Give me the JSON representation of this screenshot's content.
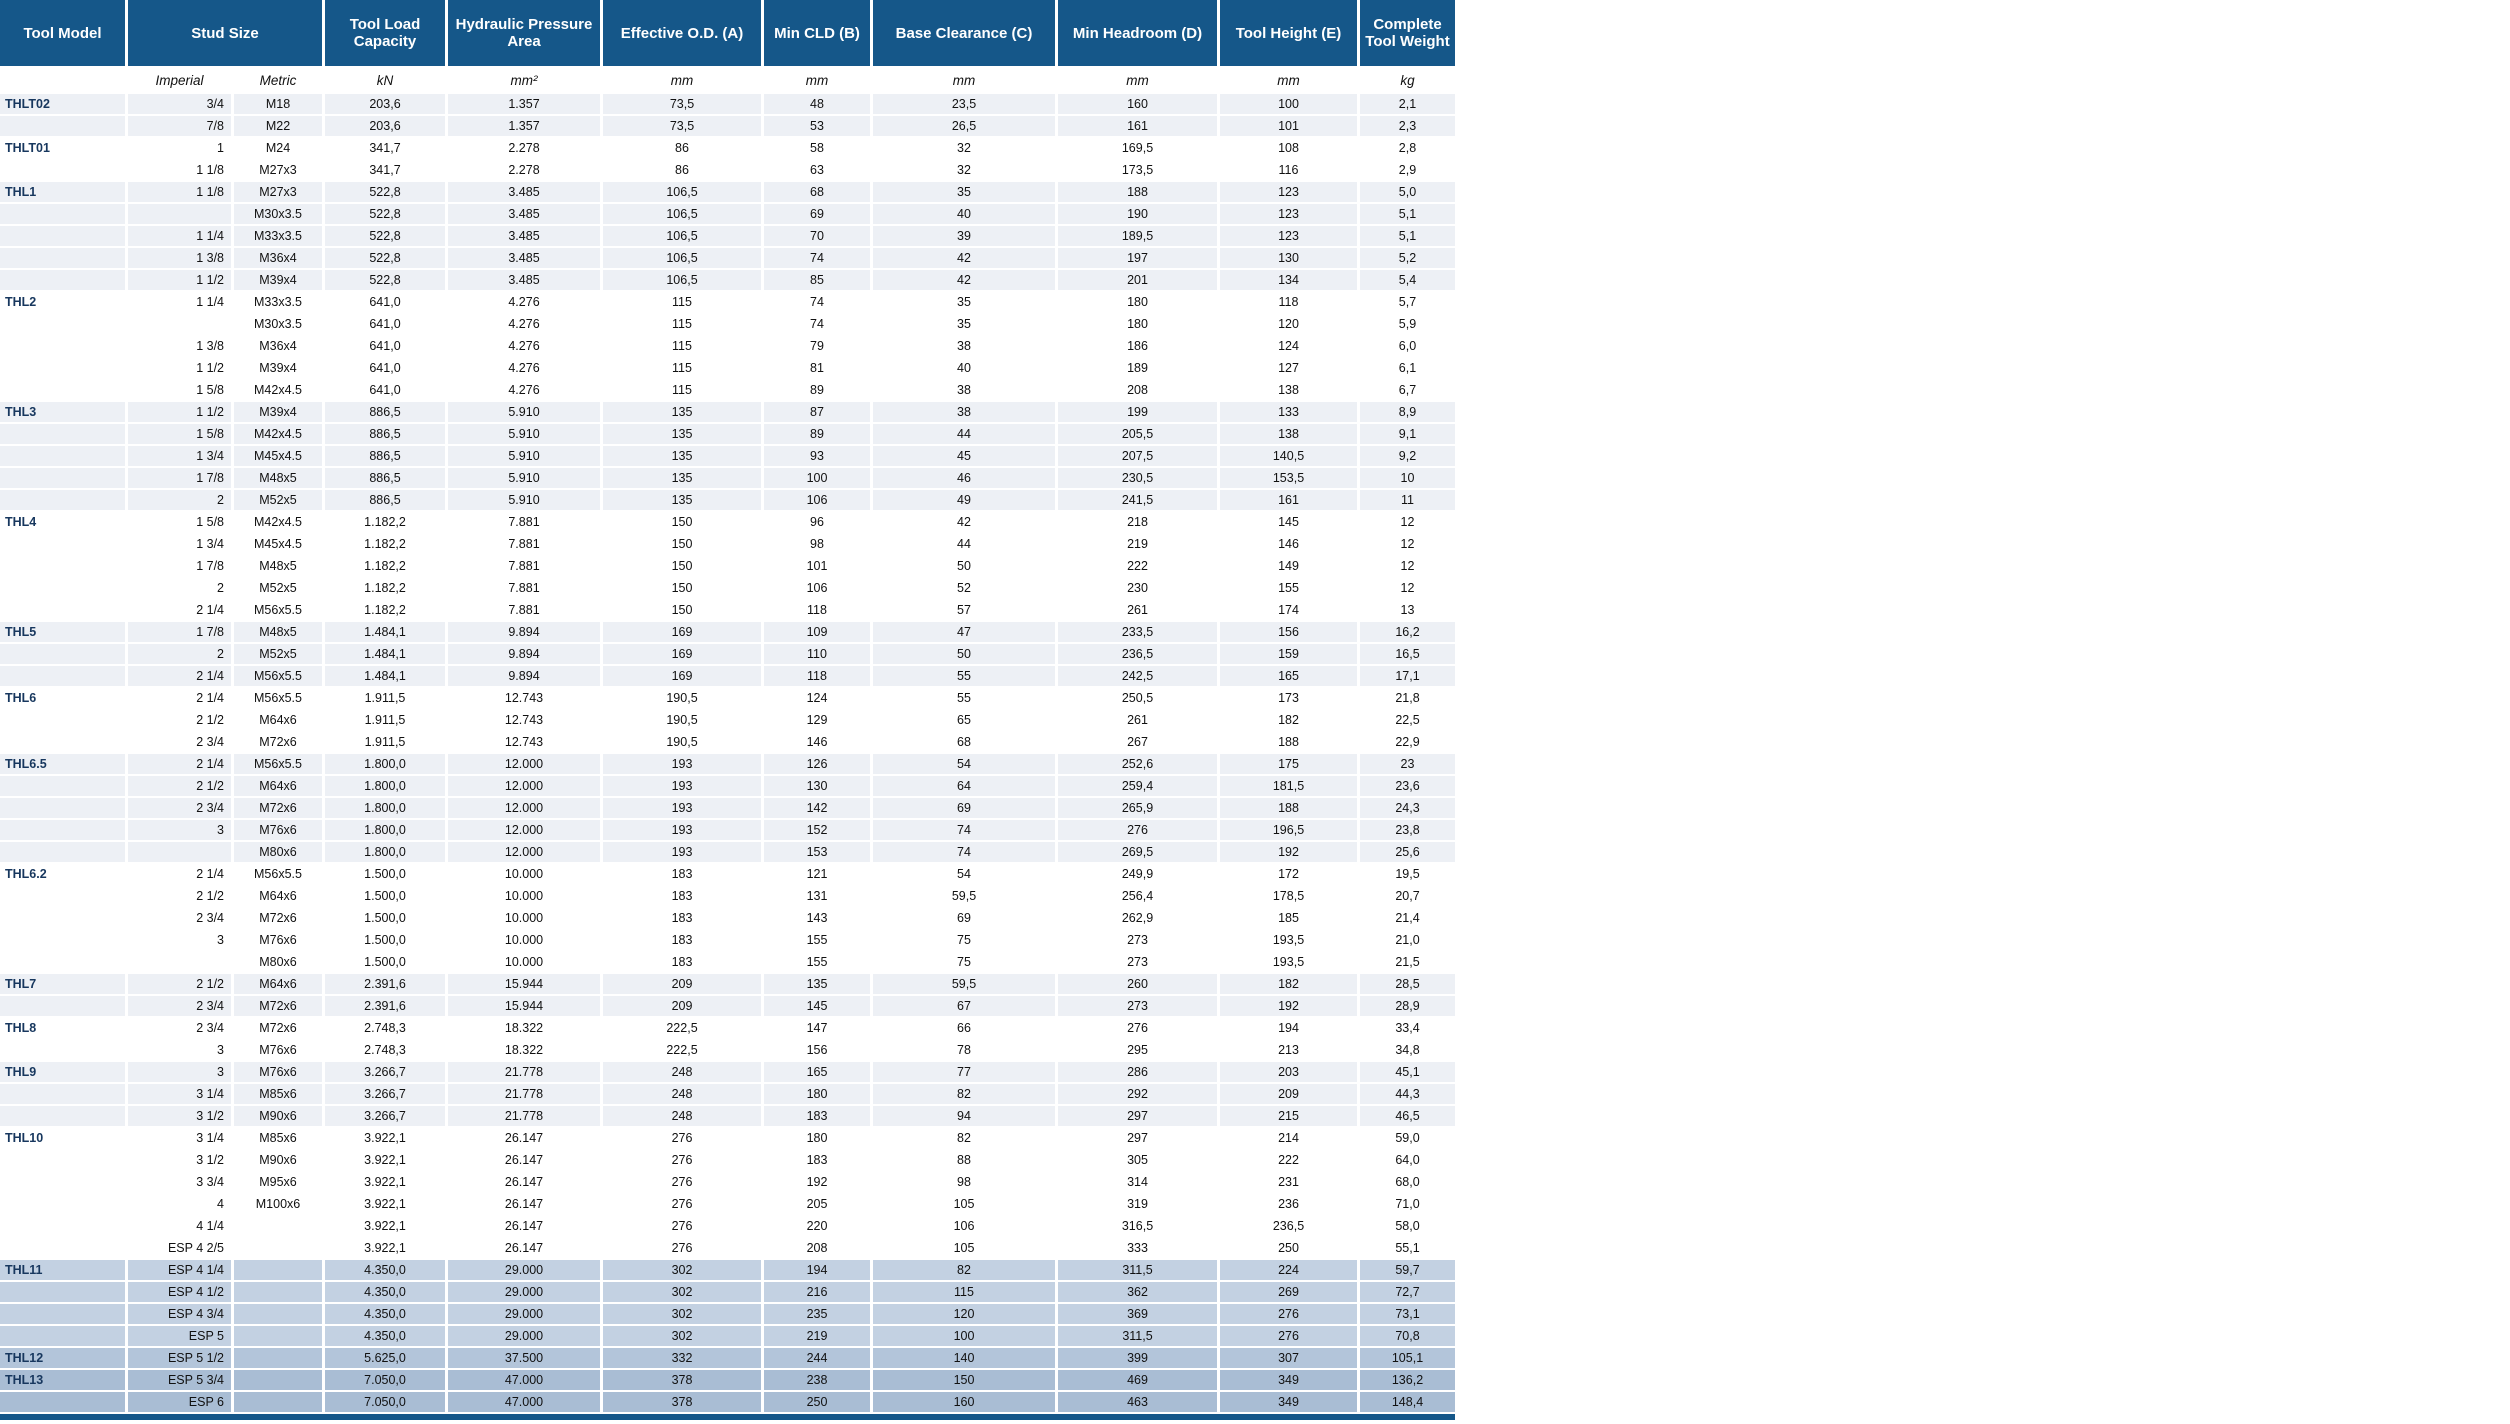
{
  "table": {
    "colors": {
      "header_bg": "#155789",
      "header_text": "#ffffff",
      "band_grey": "#edf0f5",
      "band_white": "#ffffff",
      "band_blue_light": "#c3d1e2",
      "band_blue_medium": "#b3c5da",
      "band_blue_dark": "#a9bdd4",
      "model_text": "#17375e"
    },
    "header_boxes": [
      {
        "label": "Tool Model"
      },
      {
        "label": "Stud Size"
      },
      {
        "label": "Tool Load Capacity"
      },
      {
        "label": "Hydraulic Pressure Area"
      },
      {
        "label": "Effective O.D. (A)"
      },
      {
        "label": "Min CLD (B)"
      },
      {
        "label": "Base Clearance (C)"
      },
      {
        "label": "Min Headroom (D)"
      },
      {
        "label": "Tool Height (E)"
      },
      {
        "label": "Complete Tool Weight"
      }
    ],
    "units": [
      "",
      "Imperial",
      "Metric",
      "kN",
      "mm²",
      "mm",
      "mm",
      "mm",
      "mm",
      "mm",
      "kg"
    ],
    "rows": [
      {
        "model": "THLT02",
        "imperial": "3/4",
        "metric": "M18",
        "load": "203,6",
        "hpa": "1.357",
        "od": "73,5",
        "cld": "48",
        "base": "23,5",
        "head": "160",
        "height": "100",
        "weight": "2,1",
        "band": "grey"
      },
      {
        "model": "",
        "imperial": "7/8",
        "metric": "M22",
        "load": "203,6",
        "hpa": "1.357",
        "od": "73,5",
        "cld": "53",
        "base": "26,5",
        "head": "161",
        "height": "101",
        "weight": "2,3",
        "band": "grey"
      },
      {
        "model": "THLT01",
        "imperial": "1",
        "metric": "M24",
        "load": "341,7",
        "hpa": "2.278",
        "od": "86",
        "cld": "58",
        "base": "32",
        "head": "169,5",
        "height": "108",
        "weight": "2,8",
        "band": "white"
      },
      {
        "model": "",
        "imperial": "1 1/8",
        "metric": "M27x3",
        "load": "341,7",
        "hpa": "2.278",
        "od": "86",
        "cld": "63",
        "base": "32",
        "head": "173,5",
        "height": "116",
        "weight": "2,9",
        "band": "white"
      },
      {
        "model": "THL1",
        "imperial": "1 1/8",
        "metric": "M27x3",
        "load": "522,8",
        "hpa": "3.485",
        "od": "106,5",
        "cld": "68",
        "base": "35",
        "head": "188",
        "height": "123",
        "weight": "5,0",
        "band": "grey"
      },
      {
        "model": "",
        "imperial": "",
        "metric": "M30x3.5",
        "load": "522,8",
        "hpa": "3.485",
        "od": "106,5",
        "cld": "69",
        "base": "40",
        "head": "190",
        "height": "123",
        "weight": "5,1",
        "band": "grey"
      },
      {
        "model": "",
        "imperial": "1 1/4",
        "metric": "M33x3.5",
        "load": "522,8",
        "hpa": "3.485",
        "od": "106,5",
        "cld": "70",
        "base": "39",
        "head": "189,5",
        "height": "123",
        "weight": "5,1",
        "band": "grey"
      },
      {
        "model": "",
        "imperial": "1 3/8",
        "metric": "M36x4",
        "load": "522,8",
        "hpa": "3.485",
        "od": "106,5",
        "cld": "74",
        "base": "42",
        "head": "197",
        "height": "130",
        "weight": "5,2",
        "band": "grey"
      },
      {
        "model": "",
        "imperial": "1 1/2",
        "metric": "M39x4",
        "load": "522,8",
        "hpa": "3.485",
        "od": "106,5",
        "cld": "85",
        "base": "42",
        "head": "201",
        "height": "134",
        "weight": "5,4",
        "band": "grey"
      },
      {
        "model": "THL2",
        "imperial": "1 1/4",
        "metric": "M33x3.5",
        "load": "641,0",
        "hpa": "4.276",
        "od": "115",
        "cld": "74",
        "base": "35",
        "head": "180",
        "height": "118",
        "weight": "5,7",
        "band": "white"
      },
      {
        "model": "",
        "imperial": "",
        "metric": "M30x3.5",
        "load": "641,0",
        "hpa": "4.276",
        "od": "115",
        "cld": "74",
        "base": "35",
        "head": "180",
        "height": "120",
        "weight": "5,9",
        "band": "white"
      },
      {
        "model": "",
        "imperial": "1 3/8",
        "metric": "M36x4",
        "load": "641,0",
        "hpa": "4.276",
        "od": "115",
        "cld": "79",
        "base": "38",
        "head": "186",
        "height": "124",
        "weight": "6,0",
        "band": "white"
      },
      {
        "model": "",
        "imperial": "1 1/2",
        "metric": "M39x4",
        "load": "641,0",
        "hpa": "4.276",
        "od": "115",
        "cld": "81",
        "base": "40",
        "head": "189",
        "height": "127",
        "weight": "6,1",
        "band": "white"
      },
      {
        "model": "",
        "imperial": "1 5/8",
        "metric": "M42x4.5",
        "load": "641,0",
        "hpa": "4.276",
        "od": "115",
        "cld": "89",
        "base": "38",
        "head": "208",
        "height": "138",
        "weight": "6,7",
        "band": "white"
      },
      {
        "model": "THL3",
        "imperial": "1 1/2",
        "metric": "M39x4",
        "load": "886,5",
        "hpa": "5.910",
        "od": "135",
        "cld": "87",
        "base": "38",
        "head": "199",
        "height": "133",
        "weight": "8,9",
        "band": "grey"
      },
      {
        "model": "",
        "imperial": "1 5/8",
        "metric": "M42x4.5",
        "load": "886,5",
        "hpa": "5.910",
        "od": "135",
        "cld": "89",
        "base": "44",
        "head": "205,5",
        "height": "138",
        "weight": "9,1",
        "band": "grey"
      },
      {
        "model": "",
        "imperial": "1 3/4",
        "metric": "M45x4.5",
        "load": "886,5",
        "hpa": "5.910",
        "od": "135",
        "cld": "93",
        "base": "45",
        "head": "207,5",
        "height": "140,5",
        "weight": "9,2",
        "band": "grey"
      },
      {
        "model": "",
        "imperial": "1 7/8",
        "metric": "M48x5",
        "load": "886,5",
        "hpa": "5.910",
        "od": "135",
        "cld": "100",
        "base": "46",
        "head": "230,5",
        "height": "153,5",
        "weight": "10",
        "band": "grey"
      },
      {
        "model": "",
        "imperial": "2",
        "metric": "M52x5",
        "load": "886,5",
        "hpa": "5.910",
        "od": "135",
        "cld": "106",
        "base": "49",
        "head": "241,5",
        "height": "161",
        "weight": "11",
        "band": "grey"
      },
      {
        "model": "THL4",
        "imperial": "1 5/8",
        "metric": "M42x4.5",
        "load": "1.182,2",
        "hpa": "7.881",
        "od": "150",
        "cld": "96",
        "base": "42",
        "head": "218",
        "height": "145",
        "weight": "12",
        "band": "white"
      },
      {
        "model": "",
        "imperial": "1 3/4",
        "metric": "M45x4.5",
        "load": "1.182,2",
        "hpa": "7.881",
        "od": "150",
        "cld": "98",
        "base": "44",
        "head": "219",
        "height": "146",
        "weight": "12",
        "band": "white"
      },
      {
        "model": "",
        "imperial": "1 7/8",
        "metric": "M48x5",
        "load": "1.182,2",
        "hpa": "7.881",
        "od": "150",
        "cld": "101",
        "base": "50",
        "head": "222",
        "height": "149",
        "weight": "12",
        "band": "white"
      },
      {
        "model": "",
        "imperial": "2",
        "metric": "M52x5",
        "load": "1.182,2",
        "hpa": "7.881",
        "od": "150",
        "cld": "106",
        "base": "52",
        "head": "230",
        "height": "155",
        "weight": "12",
        "band": "white"
      },
      {
        "model": "",
        "imperial": "2 1/4",
        "metric": "M56x5.5",
        "load": "1.182,2",
        "hpa": "7.881",
        "od": "150",
        "cld": "118",
        "base": "57",
        "head": "261",
        "height": "174",
        "weight": "13",
        "band": "white"
      },
      {
        "model": "THL5",
        "imperial": "1 7/8",
        "metric": "M48x5",
        "load": "1.484,1",
        "hpa": "9.894",
        "od": "169",
        "cld": "109",
        "base": "47",
        "head": "233,5",
        "height": "156",
        "weight": "16,2",
        "band": "grey"
      },
      {
        "model": "",
        "imperial": "2",
        "metric": "M52x5",
        "load": "1.484,1",
        "hpa": "9.894",
        "od": "169",
        "cld": "110",
        "base": "50",
        "head": "236,5",
        "height": "159",
        "weight": "16,5",
        "band": "grey"
      },
      {
        "model": "",
        "imperial": "2 1/4",
        "metric": "M56x5.5",
        "load": "1.484,1",
        "hpa": "9.894",
        "od": "169",
        "cld": "118",
        "base": "55",
        "head": "242,5",
        "height": "165",
        "weight": "17,1",
        "band": "grey"
      },
      {
        "model": "THL6",
        "imperial": "2 1/4",
        "metric": "M56x5.5",
        "load": "1.911,5",
        "hpa": "12.743",
        "od": "190,5",
        "cld": "124",
        "base": "55",
        "head": "250,5",
        "height": "173",
        "weight": "21,8",
        "band": "white"
      },
      {
        "model": "",
        "imperial": "2 1/2",
        "metric": "M64x6",
        "load": "1.911,5",
        "hpa": "12.743",
        "od": "190,5",
        "cld": "129",
        "base": "65",
        "head": "261",
        "height": "182",
        "weight": "22,5",
        "band": "white"
      },
      {
        "model": "",
        "imperial": "2 3/4",
        "metric": "M72x6",
        "load": "1.911,5",
        "hpa": "12.743",
        "od": "190,5",
        "cld": "146",
        "base": "68",
        "head": "267",
        "height": "188",
        "weight": "22,9",
        "band": "white"
      },
      {
        "model": "THL6.5",
        "imperial": "2 1/4",
        "metric": "M56x5.5",
        "load": "1.800,0",
        "hpa": "12.000",
        "od": "193",
        "cld": "126",
        "base": "54",
        "head": "252,6",
        "height": "175",
        "weight": "23",
        "band": "grey"
      },
      {
        "model": "",
        "imperial": "2 1/2",
        "metric": "M64x6",
        "load": "1.800,0",
        "hpa": "12.000",
        "od": "193",
        "cld": "130",
        "base": "64",
        "head": "259,4",
        "height": "181,5",
        "weight": "23,6",
        "band": "grey"
      },
      {
        "model": "",
        "imperial": "2 3/4",
        "metric": "M72x6",
        "load": "1.800,0",
        "hpa": "12.000",
        "od": "193",
        "cld": "142",
        "base": "69",
        "head": "265,9",
        "height": "188",
        "weight": "24,3",
        "band": "grey"
      },
      {
        "model": "",
        "imperial": "3",
        "metric": "M76x6",
        "load": "1.800,0",
        "hpa": "12.000",
        "od": "193",
        "cld": "152",
        "base": "74",
        "head": "276",
        "height": "196,5",
        "weight": "23,8",
        "band": "grey"
      },
      {
        "model": "",
        "imperial": "",
        "metric": "M80x6",
        "load": "1.800,0",
        "hpa": "12.000",
        "od": "193",
        "cld": "153",
        "base": "74",
        "head": "269,5",
        "height": "192",
        "weight": "25,6",
        "band": "grey"
      },
      {
        "model": "THL6.2",
        "imperial": "2 1/4",
        "metric": "M56x5.5",
        "load": "1.500,0",
        "hpa": "10.000",
        "od": "183",
        "cld": "121",
        "base": "54",
        "head": "249,9",
        "height": "172",
        "weight": "19,5",
        "band": "white"
      },
      {
        "model": "",
        "imperial": "2 1/2",
        "metric": "M64x6",
        "load": "1.500,0",
        "hpa": "10.000",
        "od": "183",
        "cld": "131",
        "base": "59,5",
        "head": "256,4",
        "height": "178,5",
        "weight": "20,7",
        "band": "white"
      },
      {
        "model": "",
        "imperial": "2 3/4",
        "metric": "M72x6",
        "load": "1.500,0",
        "hpa": "10.000",
        "od": "183",
        "cld": "143",
        "base": "69",
        "head": "262,9",
        "height": "185",
        "weight": "21,4",
        "band": "white"
      },
      {
        "model": "",
        "imperial": "3",
        "metric": "M76x6",
        "load": "1.500,0",
        "hpa": "10.000",
        "od": "183",
        "cld": "155",
        "base": "75",
        "head": "273",
        "height": "193,5",
        "weight": "21,0",
        "band": "white"
      },
      {
        "model": "",
        "imperial": "",
        "metric": "M80x6",
        "load": "1.500,0",
        "hpa": "10.000",
        "od": "183",
        "cld": "155",
        "base": "75",
        "head": "273",
        "height": "193,5",
        "weight": "21,5",
        "band": "white"
      },
      {
        "model": "THL7",
        "imperial": "2 1/2",
        "metric": "M64x6",
        "load": "2.391,6",
        "hpa": "15.944",
        "od": "209",
        "cld": "135",
        "base": "59,5",
        "head": "260",
        "height": "182",
        "weight": "28,5",
        "band": "grey"
      },
      {
        "model": "",
        "imperial": "2 3/4",
        "metric": "M72x6",
        "load": "2.391,6",
        "hpa": "15.944",
        "od": "209",
        "cld": "145",
        "base": "67",
        "head": "273",
        "height": "192",
        "weight": "28,9",
        "band": "grey"
      },
      {
        "model": "THL8",
        "imperial": "2 3/4",
        "metric": "M72x6",
        "load": "2.748,3",
        "hpa": "18.322",
        "od": "222,5",
        "cld": "147",
        "base": "66",
        "head": "276",
        "height": "194",
        "weight": "33,4",
        "band": "white"
      },
      {
        "model": "",
        "imperial": "3",
        "metric": "M76x6",
        "load": "2.748,3",
        "hpa": "18.322",
        "od": "222,5",
        "cld": "156",
        "base": "78",
        "head": "295",
        "height": "213",
        "weight": "34,8",
        "band": "white"
      },
      {
        "model": "THL9",
        "imperial": "3",
        "metric": "M76x6",
        "load": "3.266,7",
        "hpa": "21.778",
        "od": "248",
        "cld": "165",
        "base": "77",
        "head": "286",
        "height": "203",
        "weight": "45,1",
        "band": "grey"
      },
      {
        "model": "",
        "imperial": "3 1/4",
        "metric": "M85x6",
        "load": "3.266,7",
        "hpa": "21.778",
        "od": "248",
        "cld": "180",
        "base": "82",
        "head": "292",
        "height": "209",
        "weight": "44,3",
        "band": "grey"
      },
      {
        "model": "",
        "imperial": "3 1/2",
        "metric": "M90x6",
        "load": "3.266,7",
        "hpa": "21.778",
        "od": "248",
        "cld": "183",
        "base": "94",
        "head": "297",
        "height": "215",
        "weight": "46,5",
        "band": "grey"
      },
      {
        "model": "THL10",
        "imperial": "3 1/4",
        "metric": "M85x6",
        "load": "3.922,1",
        "hpa": "26.147",
        "od": "276",
        "cld": "180",
        "base": "82",
        "head": "297",
        "height": "214",
        "weight": "59,0",
        "band": "white"
      },
      {
        "model": "",
        "imperial": "3 1/2",
        "metric": "M90x6",
        "load": "3.922,1",
        "hpa": "26.147",
        "od": "276",
        "cld": "183",
        "base": "88",
        "head": "305",
        "height": "222",
        "weight": "64,0",
        "band": "white"
      },
      {
        "model": "",
        "imperial": "3 3/4",
        "metric": "M95x6",
        "load": "3.922,1",
        "hpa": "26.147",
        "od": "276",
        "cld": "192",
        "base": "98",
        "head": "314",
        "height": "231",
        "weight": "68,0",
        "band": "white"
      },
      {
        "model": "",
        "imperial": "4",
        "metric": "M100x6",
        "load": "3.922,1",
        "hpa": "26.147",
        "od": "276",
        "cld": "205",
        "base": "105",
        "head": "319",
        "height": "236",
        "weight": "71,0",
        "band": "white"
      },
      {
        "model": "",
        "imperial": "4 1/4",
        "metric": "",
        "load": "3.922,1",
        "hpa": "26.147",
        "od": "276",
        "cld": "220",
        "base": "106",
        "head": "316,5",
        "height": "236,5",
        "weight": "58,0",
        "band": "white"
      },
      {
        "model": "",
        "imperial": "ESP 4 2/5",
        "metric": "",
        "load": "3.922,1",
        "hpa": "26.147",
        "od": "276",
        "cld": "208",
        "base": "105",
        "head": "333",
        "height": "250",
        "weight": "55,1",
        "band": "white"
      },
      {
        "model": "THL11",
        "imperial": "ESP 4 1/4",
        "metric": "",
        "load": "4.350,0",
        "hpa": "29.000",
        "od": "302",
        "cld": "194",
        "base": "82",
        "head": "311,5",
        "height": "224",
        "weight": "59,7",
        "band": "blue1"
      },
      {
        "model": "",
        "imperial": "ESP 4 1/2",
        "metric": "",
        "load": "4.350,0",
        "hpa": "29.000",
        "od": "302",
        "cld": "216",
        "base": "115",
        "head": "362",
        "height": "269",
        "weight": "72,7",
        "band": "blue1"
      },
      {
        "model": "",
        "imperial": "ESP 4 3/4",
        "metric": "",
        "load": "4.350,0",
        "hpa": "29.000",
        "od": "302",
        "cld": "235",
        "base": "120",
        "head": "369",
        "height": "276",
        "weight": "73,1",
        "band": "blue1"
      },
      {
        "model": "",
        "imperial": "ESP 5",
        "metric": "",
        "load": "4.350,0",
        "hpa": "29.000",
        "od": "302",
        "cld": "219",
        "base": "100",
        "head": "311,5",
        "height": "276",
        "weight": "70,8",
        "band": "blue1"
      },
      {
        "model": "THL12",
        "imperial": "ESP 5 1/2",
        "metric": "",
        "load": "5.625,0",
        "hpa": "37.500",
        "od": "332",
        "cld": "244",
        "base": "140",
        "head": "399",
        "height": "307",
        "weight": "105,1",
        "band": "blue2"
      },
      {
        "model": "THL13",
        "imperial": "ESP 5 3/4",
        "metric": "",
        "load": "7.050,0",
        "hpa": "47.000",
        "od": "378",
        "cld": "238",
        "base": "150",
        "head": "469",
        "height": "349",
        "weight": "136,2",
        "band": "blue3"
      },
      {
        "model": "",
        "imperial": "ESP 6",
        "metric": "",
        "load": "7.050,0",
        "hpa": "47.000",
        "od": "378",
        "cld": "250",
        "base": "160",
        "head": "463",
        "height": "349",
        "weight": "148,4",
        "band": "blue3"
      }
    ]
  }
}
